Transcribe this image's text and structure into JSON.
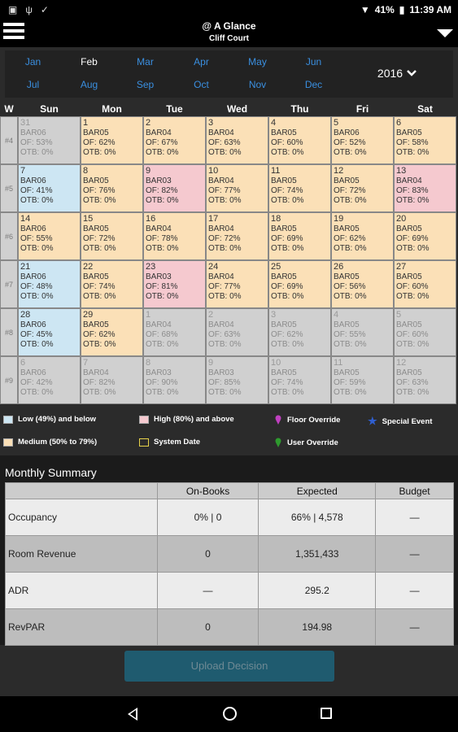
{
  "status": {
    "battery": "41%",
    "time": "11:39 AM"
  },
  "header": {
    "title": "@ A Glance",
    "subtitle": "Cliff Court"
  },
  "months": [
    "Jan",
    "Feb",
    "Mar",
    "Apr",
    "May",
    "Jun",
    "Jul",
    "Aug",
    "Sep",
    "Oct",
    "Nov",
    "Dec"
  ],
  "selected_month": "Feb",
  "year": "2016",
  "calendar": {
    "week_col": "W",
    "days": [
      "Sun",
      "Mon",
      "Tue",
      "Wed",
      "Thu",
      "Fri",
      "Sat"
    ],
    "weeks": [
      {
        "wk": "#4",
        "cells": [
          {
            "d": "31",
            "rate": "BAR06",
            "of": "OF: 53%",
            "otb": "OTB: 0%",
            "c": "grey"
          },
          {
            "d": "1",
            "rate": "BAR05",
            "of": "OF: 62%",
            "otb": "OTB: 0%",
            "c": "med"
          },
          {
            "d": "2",
            "rate": "BAR04",
            "of": "OF: 67%",
            "otb": "OTB: 0%",
            "c": "med"
          },
          {
            "d": "3",
            "rate": "BAR04",
            "of": "OF: 63%",
            "otb": "OTB: 0%",
            "c": "med"
          },
          {
            "d": "4",
            "rate": "BAR05",
            "of": "OF: 60%",
            "otb": "OTB: 0%",
            "c": "med"
          },
          {
            "d": "5",
            "rate": "BAR06",
            "of": "OF: 52%",
            "otb": "OTB: 0%",
            "c": "med"
          },
          {
            "d": "6",
            "rate": "BAR05",
            "of": "OF: 58%",
            "otb": "OTB: 0%",
            "c": "med"
          }
        ]
      },
      {
        "wk": "#5",
        "cells": [
          {
            "d": "7",
            "rate": "BAR06",
            "of": "OF: 41%",
            "otb": "OTB: 0%",
            "c": "low"
          },
          {
            "d": "8",
            "rate": "BAR05",
            "of": "OF: 76%",
            "otb": "OTB: 0%",
            "c": "med"
          },
          {
            "d": "9",
            "rate": "BAR03",
            "of": "OF: 82%",
            "otb": "OTB: 0%",
            "c": "high"
          },
          {
            "d": "10",
            "rate": "BAR04",
            "of": "OF: 77%",
            "otb": "OTB: 0%",
            "c": "med"
          },
          {
            "d": "11",
            "rate": "BAR05",
            "of": "OF: 74%",
            "otb": "OTB: 0%",
            "c": "med"
          },
          {
            "d": "12",
            "rate": "BAR05",
            "of": "OF: 72%",
            "otb": "OTB: 0%",
            "c": "med"
          },
          {
            "d": "13",
            "rate": "BAR04",
            "of": "OF: 83%",
            "otb": "OTB: 0%",
            "c": "high"
          }
        ]
      },
      {
        "wk": "#6",
        "cells": [
          {
            "d": "14",
            "rate": "BAR06",
            "of": "OF: 55%",
            "otb": "OTB: 0%",
            "c": "med"
          },
          {
            "d": "15",
            "rate": "BAR05",
            "of": "OF: 72%",
            "otb": "OTB: 0%",
            "c": "med"
          },
          {
            "d": "16",
            "rate": "BAR04",
            "of": "OF: 78%",
            "otb": "OTB: 0%",
            "c": "med"
          },
          {
            "d": "17",
            "rate": "BAR04",
            "of": "OF: 72%",
            "otb": "OTB: 0%",
            "c": "med"
          },
          {
            "d": "18",
            "rate": "BAR05",
            "of": "OF: 69%",
            "otb": "OTB: 0%",
            "c": "med"
          },
          {
            "d": "19",
            "rate": "BAR05",
            "of": "OF: 62%",
            "otb": "OTB: 0%",
            "c": "med"
          },
          {
            "d": "20",
            "rate": "BAR05",
            "of": "OF: 69%",
            "otb": "OTB: 0%",
            "c": "med"
          }
        ]
      },
      {
        "wk": "#7",
        "cells": [
          {
            "d": "21",
            "rate": "BAR06",
            "of": "OF: 48%",
            "otb": "OTB: 0%",
            "c": "low"
          },
          {
            "d": "22",
            "rate": "BAR05",
            "of": "OF: 74%",
            "otb": "OTB: 0%",
            "c": "med"
          },
          {
            "d": "23",
            "rate": "BAR03",
            "of": "OF: 81%",
            "otb": "OTB: 0%",
            "c": "high"
          },
          {
            "d": "24",
            "rate": "BAR04",
            "of": "OF: 77%",
            "otb": "OTB: 0%",
            "c": "med"
          },
          {
            "d": "25",
            "rate": "BAR05",
            "of": "OF: 69%",
            "otb": "OTB: 0%",
            "c": "med"
          },
          {
            "d": "26",
            "rate": "BAR05",
            "of": "OF: 56%",
            "otb": "OTB: 0%",
            "c": "med"
          },
          {
            "d": "27",
            "rate": "BAR05",
            "of": "OF: 60%",
            "otb": "OTB: 0%",
            "c": "med"
          }
        ]
      },
      {
        "wk": "#8",
        "cells": [
          {
            "d": "28",
            "rate": "BAR06",
            "of": "OF: 45%",
            "otb": "OTB: 0%",
            "c": "low"
          },
          {
            "d": "29",
            "rate": "BAR05",
            "of": "OF: 62%",
            "otb": "OTB: 0%",
            "c": "med"
          },
          {
            "d": "1",
            "rate": "BAR04",
            "of": "OF: 68%",
            "otb": "OTB: 0%",
            "c": "grey"
          },
          {
            "d": "2",
            "rate": "BAR04",
            "of": "OF: 63%",
            "otb": "OTB: 0%",
            "c": "grey"
          },
          {
            "d": "3",
            "rate": "BAR05",
            "of": "OF: 62%",
            "otb": "OTB: 0%",
            "c": "grey"
          },
          {
            "d": "4",
            "rate": "BAR05",
            "of": "OF: 55%",
            "otb": "OTB: 0%",
            "c": "grey"
          },
          {
            "d": "5",
            "rate": "BAR05",
            "of": "OF: 60%",
            "otb": "OTB: 0%",
            "c": "grey"
          }
        ]
      },
      {
        "wk": "#9",
        "cells": [
          {
            "d": "6",
            "rate": "BAR06",
            "of": "OF: 42%",
            "otb": "OTB: 0%",
            "c": "grey"
          },
          {
            "d": "7",
            "rate": "BAR04",
            "of": "OF: 82%",
            "otb": "OTB: 0%",
            "c": "grey"
          },
          {
            "d": "8",
            "rate": "BAR03",
            "of": "OF: 90%",
            "otb": "OTB: 0%",
            "c": "grey"
          },
          {
            "d": "9",
            "rate": "BAR03",
            "of": "OF: 85%",
            "otb": "OTB: 0%",
            "c": "grey"
          },
          {
            "d": "10",
            "rate": "BAR05",
            "of": "OF: 74%",
            "otb": "OTB: 0%",
            "c": "grey"
          },
          {
            "d": "11",
            "rate": "BAR05",
            "of": "OF: 59%",
            "otb": "OTB: 0%",
            "c": "grey"
          },
          {
            "d": "12",
            "rate": "BAR05",
            "of": "OF: 63%",
            "otb": "OTB: 0%",
            "c": "grey"
          }
        ]
      }
    ]
  },
  "legend": {
    "low": "Low (49%) and below",
    "high": "High (80%) and above",
    "medium": "Medium (50% to 79%)",
    "system_date": "System Date",
    "floor_override": "Floor Override",
    "user_override": "User Override",
    "special_event": "Special Event"
  },
  "colors": {
    "low": "#cde6f3",
    "medium": "#fbe0b7",
    "high": "#f5c9cf",
    "past": "#d0d0d0",
    "accent": "#3a8fe0",
    "floor_override": "#c040c0",
    "user_override": "#2e9a2e",
    "special_event": "#2f5fd0"
  },
  "summary": {
    "title": "Monthly Summary",
    "columns": [
      "On-Books",
      "Expected",
      "Budget"
    ],
    "rows": [
      {
        "label": "Occupancy",
        "on_books": "0% | 0",
        "expected": "66% | 4,578",
        "budget": "—"
      },
      {
        "label": "Room Revenue",
        "on_books": "0",
        "expected": "1,351,433",
        "budget": "—"
      },
      {
        "label": "ADR",
        "on_books": "—",
        "expected": "295.2",
        "budget": "—"
      },
      {
        "label": "RevPAR",
        "on_books": "0",
        "expected": "194.98",
        "budget": "—"
      }
    ]
  },
  "upload_button": "Upload Decision"
}
